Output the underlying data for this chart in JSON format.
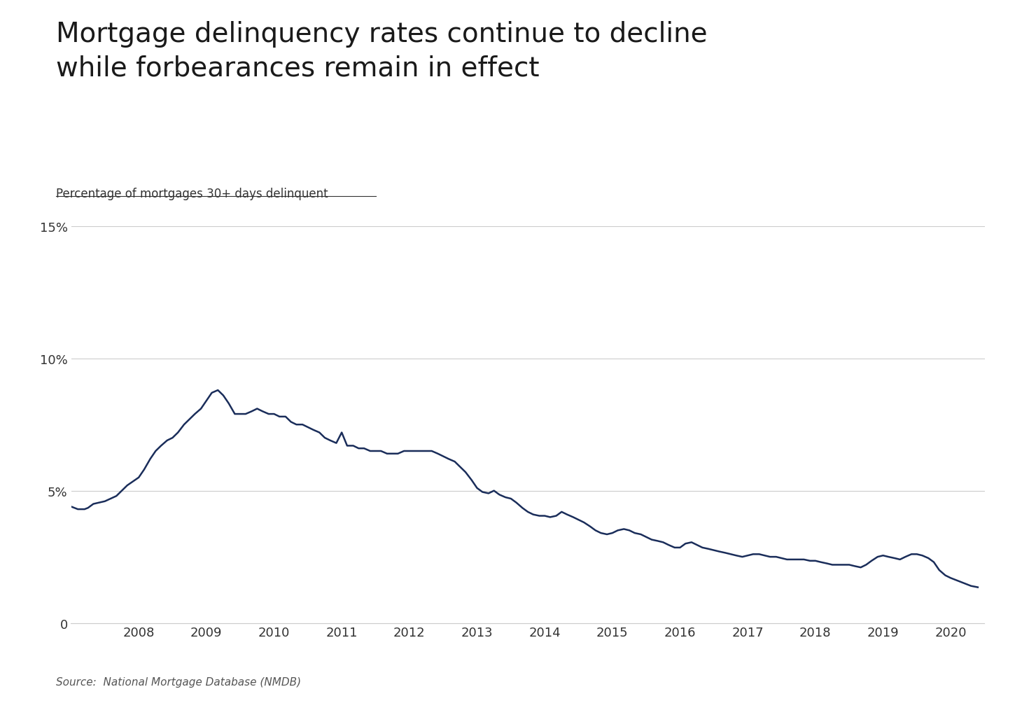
{
  "title": "Mortgage delinquency rates continue to decline\nwhile forbearances remain in effect",
  "subtitle": "Percentage of mortgages 30+ days delinquent",
  "source": "Source:  National Mortgage Database (NMDB)",
  "line_color": "#1a2d5a",
  "background_color": "#ffffff",
  "grid_color": "#cccccc",
  "ylim": [
    0,
    15
  ],
  "ytick_labels": [
    "0",
    "5%",
    "10%",
    "15%"
  ],
  "ytick_values": [
    0,
    5,
    10,
    15
  ],
  "x_years": [
    2008,
    2009,
    2010,
    2011,
    2012,
    2013,
    2014,
    2015,
    2016,
    2017,
    2018,
    2019,
    2020
  ],
  "data": [
    [
      2007.0,
      4.4
    ],
    [
      2007.1,
      4.3
    ],
    [
      2007.2,
      4.3
    ],
    [
      2007.25,
      4.35
    ],
    [
      2007.33,
      4.5
    ],
    [
      2007.5,
      4.6
    ],
    [
      2007.67,
      4.8
    ],
    [
      2007.75,
      5.0
    ],
    [
      2007.83,
      5.2
    ],
    [
      2008.0,
      5.5
    ],
    [
      2008.08,
      5.8
    ],
    [
      2008.17,
      6.2
    ],
    [
      2008.25,
      6.5
    ],
    [
      2008.33,
      6.7
    ],
    [
      2008.42,
      6.9
    ],
    [
      2008.5,
      7.0
    ],
    [
      2008.58,
      7.2
    ],
    [
      2008.67,
      7.5
    ],
    [
      2008.75,
      7.7
    ],
    [
      2008.83,
      7.9
    ],
    [
      2008.92,
      8.1
    ],
    [
      2009.0,
      8.4
    ],
    [
      2009.08,
      8.7
    ],
    [
      2009.17,
      8.8
    ],
    [
      2009.25,
      8.6
    ],
    [
      2009.33,
      8.3
    ],
    [
      2009.42,
      7.9
    ],
    [
      2009.5,
      7.9
    ],
    [
      2009.58,
      7.9
    ],
    [
      2009.67,
      8.0
    ],
    [
      2009.75,
      8.1
    ],
    [
      2009.83,
      8.0
    ],
    [
      2009.92,
      7.9
    ],
    [
      2010.0,
      7.9
    ],
    [
      2010.08,
      7.8
    ],
    [
      2010.17,
      7.8
    ],
    [
      2010.25,
      7.6
    ],
    [
      2010.33,
      7.5
    ],
    [
      2010.42,
      7.5
    ],
    [
      2010.5,
      7.4
    ],
    [
      2010.58,
      7.3
    ],
    [
      2010.67,
      7.2
    ],
    [
      2010.75,
      7.0
    ],
    [
      2010.83,
      6.9
    ],
    [
      2010.92,
      6.8
    ],
    [
      2011.0,
      7.2
    ],
    [
      2011.08,
      6.7
    ],
    [
      2011.17,
      6.7
    ],
    [
      2011.25,
      6.6
    ],
    [
      2011.33,
      6.6
    ],
    [
      2011.42,
      6.5
    ],
    [
      2011.5,
      6.5
    ],
    [
      2011.58,
      6.5
    ],
    [
      2011.67,
      6.4
    ],
    [
      2011.75,
      6.4
    ],
    [
      2011.83,
      6.4
    ],
    [
      2011.92,
      6.5
    ],
    [
      2012.0,
      6.5
    ],
    [
      2012.08,
      6.5
    ],
    [
      2012.17,
      6.5
    ],
    [
      2012.25,
      6.5
    ],
    [
      2012.33,
      6.5
    ],
    [
      2012.42,
      6.4
    ],
    [
      2012.5,
      6.3
    ],
    [
      2012.58,
      6.2
    ],
    [
      2012.67,
      6.1
    ],
    [
      2012.75,
      5.9
    ],
    [
      2012.83,
      5.7
    ],
    [
      2012.92,
      5.4
    ],
    [
      2013.0,
      5.1
    ],
    [
      2013.08,
      4.95
    ],
    [
      2013.17,
      4.9
    ],
    [
      2013.25,
      5.0
    ],
    [
      2013.33,
      4.85
    ],
    [
      2013.42,
      4.75
    ],
    [
      2013.5,
      4.7
    ],
    [
      2013.58,
      4.55
    ],
    [
      2013.67,
      4.35
    ],
    [
      2013.75,
      4.2
    ],
    [
      2013.83,
      4.1
    ],
    [
      2013.92,
      4.05
    ],
    [
      2014.0,
      4.05
    ],
    [
      2014.08,
      4.0
    ],
    [
      2014.17,
      4.05
    ],
    [
      2014.25,
      4.2
    ],
    [
      2014.33,
      4.1
    ],
    [
      2014.42,
      4.0
    ],
    [
      2014.5,
      3.9
    ],
    [
      2014.58,
      3.8
    ],
    [
      2014.67,
      3.65
    ],
    [
      2014.75,
      3.5
    ],
    [
      2014.83,
      3.4
    ],
    [
      2014.92,
      3.35
    ],
    [
      2015.0,
      3.4
    ],
    [
      2015.08,
      3.5
    ],
    [
      2015.17,
      3.55
    ],
    [
      2015.25,
      3.5
    ],
    [
      2015.33,
      3.4
    ],
    [
      2015.42,
      3.35
    ],
    [
      2015.5,
      3.25
    ],
    [
      2015.58,
      3.15
    ],
    [
      2015.67,
      3.1
    ],
    [
      2015.75,
      3.05
    ],
    [
      2015.83,
      2.95
    ],
    [
      2015.92,
      2.85
    ],
    [
      2016.0,
      2.85
    ],
    [
      2016.08,
      3.0
    ],
    [
      2016.17,
      3.05
    ],
    [
      2016.25,
      2.95
    ],
    [
      2016.33,
      2.85
    ],
    [
      2016.42,
      2.8
    ],
    [
      2016.5,
      2.75
    ],
    [
      2016.58,
      2.7
    ],
    [
      2016.67,
      2.65
    ],
    [
      2016.75,
      2.6
    ],
    [
      2016.83,
      2.55
    ],
    [
      2016.92,
      2.5
    ],
    [
      2017.0,
      2.55
    ],
    [
      2017.08,
      2.6
    ],
    [
      2017.17,
      2.6
    ],
    [
      2017.25,
      2.55
    ],
    [
      2017.33,
      2.5
    ],
    [
      2017.42,
      2.5
    ],
    [
      2017.5,
      2.45
    ],
    [
      2017.58,
      2.4
    ],
    [
      2017.67,
      2.4
    ],
    [
      2017.75,
      2.4
    ],
    [
      2017.83,
      2.4
    ],
    [
      2017.92,
      2.35
    ],
    [
      2018.0,
      2.35
    ],
    [
      2018.08,
      2.3
    ],
    [
      2018.17,
      2.25
    ],
    [
      2018.25,
      2.2
    ],
    [
      2018.33,
      2.2
    ],
    [
      2018.42,
      2.2
    ],
    [
      2018.5,
      2.2
    ],
    [
      2018.58,
      2.15
    ],
    [
      2018.67,
      2.1
    ],
    [
      2018.75,
      2.2
    ],
    [
      2018.83,
      2.35
    ],
    [
      2018.92,
      2.5
    ],
    [
      2019.0,
      2.55
    ],
    [
      2019.08,
      2.5
    ],
    [
      2019.17,
      2.45
    ],
    [
      2019.25,
      2.4
    ],
    [
      2019.33,
      2.5
    ],
    [
      2019.42,
      2.6
    ],
    [
      2019.5,
      2.6
    ],
    [
      2019.58,
      2.55
    ],
    [
      2019.67,
      2.45
    ],
    [
      2019.75,
      2.3
    ],
    [
      2019.83,
      2.0
    ],
    [
      2019.92,
      1.8
    ],
    [
      2020.0,
      1.7
    ],
    [
      2020.1,
      1.6
    ],
    [
      2020.2,
      1.5
    ],
    [
      2020.3,
      1.4
    ],
    [
      2020.4,
      1.35
    ]
  ]
}
